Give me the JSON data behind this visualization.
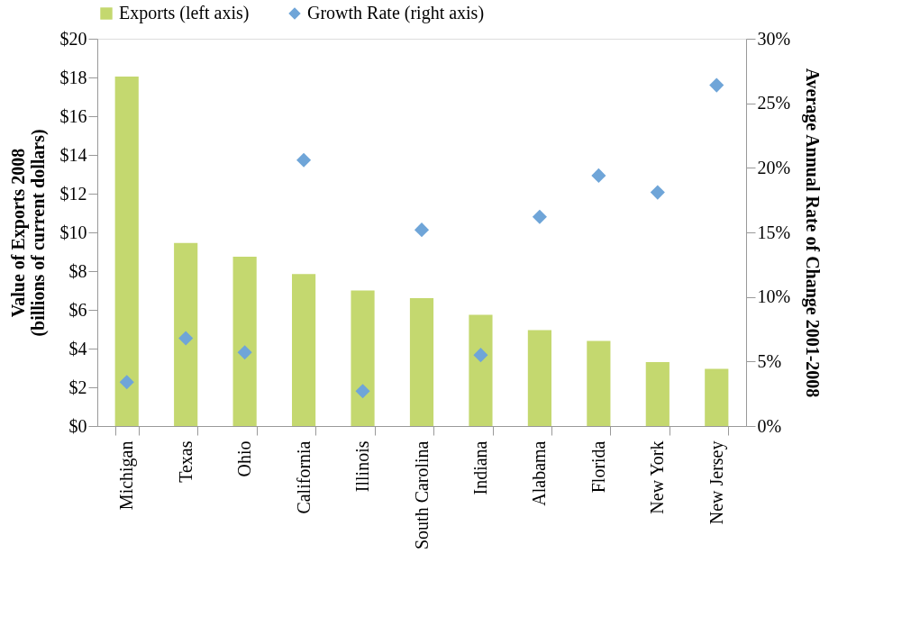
{
  "chart_data": {
    "type": "bar",
    "categories": [
      "Michigan",
      "Texas",
      "Ohio",
      "California",
      "Illinois",
      "South Carolina",
      "Indiana",
      "Alabama",
      "Florida",
      "New York",
      "New Jersey"
    ],
    "series": [
      {
        "name": "Exports (left axis)",
        "color": "#c4d86f",
        "values": [
          18.05,
          9.45,
          8.75,
          7.85,
          7.0,
          6.6,
          5.75,
          4.95,
          4.4,
          3.3,
          2.95
        ]
      },
      {
        "name": "Growth Rate (right axis)",
        "type": "scatter",
        "axis": "y2",
        "color": "#6fa5d8",
        "marker": "diamond",
        "values": [
          3.4,
          6.8,
          5.7,
          20.6,
          2.7,
          15.2,
          5.5,
          16.2,
          19.4,
          18.1,
          26.4
        ]
      }
    ],
    "ylabel": "Value of Exports 2008\n(billions of current dollars)",
    "y2label": "Average Annual Rate of Change 2001-2008",
    "ylim": [
      0,
      20
    ],
    "yticks": [
      {
        "value": 0,
        "label": "$0"
      },
      {
        "value": 2,
        "label": "$2"
      },
      {
        "value": 4,
        "label": "$4"
      },
      {
        "value": 6,
        "label": "$6"
      },
      {
        "value": 8,
        "label": "$8"
      },
      {
        "value": 10,
        "label": "$10"
      },
      {
        "value": 12,
        "label": "$12"
      },
      {
        "value": 14,
        "label": "$14"
      },
      {
        "value": 16,
        "label": "$16"
      },
      {
        "value": 18,
        "label": "$18"
      },
      {
        "value": 20,
        "label": "$20"
      }
    ],
    "y2lim": [
      0,
      30
    ],
    "y2ticks": [
      {
        "value": 0,
        "label": "0%"
      },
      {
        "value": 5,
        "label": "5%"
      },
      {
        "value": 10,
        "label": "10%"
      },
      {
        "value": 15,
        "label": "15%"
      },
      {
        "value": 20,
        "label": "20%"
      },
      {
        "value": 25,
        "label": "25%"
      },
      {
        "value": 30,
        "label": "30%"
      }
    ],
    "legend": "top",
    "grid": false
  }
}
